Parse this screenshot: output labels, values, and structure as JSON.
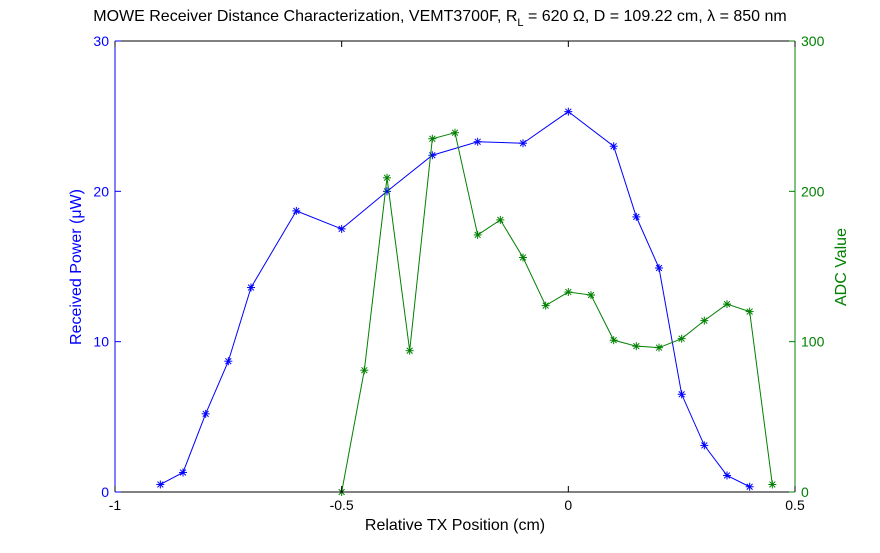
{
  "chart_data": {
    "type": "line",
    "title": {
      "prefix": "MOWE Receiver Distance Characterization, VEMT3700F, R",
      "subscript": "L",
      "suffix": " = 620 Ω, D = 109.22 cm, λ = 850 nm"
    },
    "xlabel": "Relative TX Position (cm)",
    "ylabel_left": "Received Power (μW)",
    "ylabel_right": "ADC Value",
    "xlim": [
      -1,
      0.5
    ],
    "ylim_left": [
      0,
      30
    ],
    "ylim_right": [
      0,
      300
    ],
    "x_ticks": [
      -1,
      -0.5,
      0,
      0.5
    ],
    "x_tick_labels": [
      "-1",
      "-0.5",
      "0",
      "0.5"
    ],
    "y_left_ticks": [
      0,
      10,
      20,
      30
    ],
    "y_left_tick_labels": [
      "0",
      "10",
      "20",
      "30"
    ],
    "y_right_ticks": [
      0,
      100,
      200,
      300
    ],
    "y_right_tick_labels": [
      "0",
      "100",
      "200",
      "300"
    ],
    "grid": false,
    "legend": "none",
    "series": [
      {
        "axis": "left",
        "color": "#0000ff",
        "marker": "asterisk",
        "x": [
          -0.9,
          -0.85,
          -0.8,
          -0.75,
          -0.7,
          -0.6,
          -0.5,
          -0.4,
          -0.3,
          -0.2,
          -0.1,
          0.0,
          0.1,
          0.15,
          0.2,
          0.25,
          0.3,
          0.35,
          0.4
        ],
        "y": [
          0.5,
          1.3,
          5.2,
          8.7,
          13.6,
          18.7,
          17.5,
          20.0,
          22.4,
          23.3,
          23.2,
          25.3,
          23.0,
          18.3,
          14.9,
          6.5,
          3.1,
          1.1,
          0.35
        ]
      },
      {
        "axis": "right",
        "color": "#008000",
        "marker": "asterisk",
        "x": [
          -0.5,
          -0.45,
          -0.4,
          -0.35,
          -0.3,
          -0.25,
          -0.2,
          -0.15,
          -0.1,
          -0.05,
          0.0,
          0.05,
          0.1,
          0.15,
          0.2,
          0.25,
          0.3,
          0.35,
          0.4,
          0.45
        ],
        "y": [
          0,
          81,
          209,
          94,
          235,
          239,
          171,
          181,
          156,
          124,
          133,
          131,
          101,
          97,
          96,
          102,
          114,
          125,
          120,
          5
        ]
      }
    ]
  },
  "colors": {
    "left_axis": "#0000ff",
    "right_axis": "#008000",
    "frame": "#000000"
  }
}
